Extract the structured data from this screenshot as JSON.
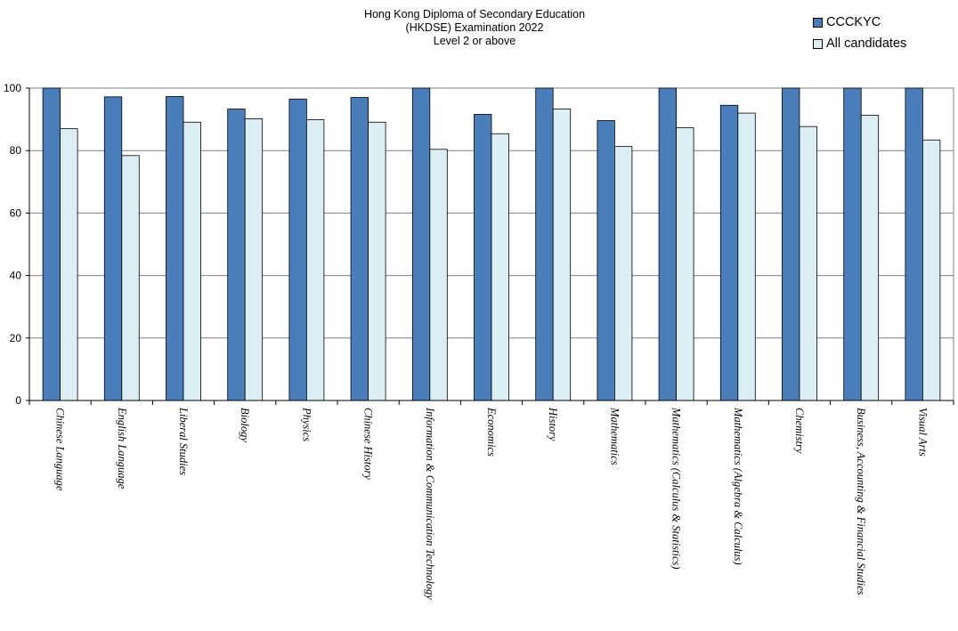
{
  "chart_data": {
    "type": "bar",
    "title_lines": [
      "Hong Kong Diploma of Secondary Education",
      "(HKDSE) Examination 2022",
      "Level 2 or above"
    ],
    "legend_position": "top-right",
    "grid": true,
    "ylim": [
      0,
      100
    ],
    "yticks": [
      0,
      20,
      40,
      60,
      80,
      100
    ],
    "categories": [
      "Chinese Language",
      "English Language",
      "Liberal Studies",
      "Biology",
      "Physics",
      "Chinese History",
      "Information & Communication Technology",
      "Economics",
      "History",
      "Mathematics",
      "Mathematics (Calculus & Statistics)",
      "Mathematics (Algebra & Calculus)",
      "Chemistry",
      "Business, Accounting & Financial Studies",
      "Visual Arts"
    ],
    "series": [
      {
        "name": "CCCKYC",
        "color": "#4a7ebb",
        "values": [
          100,
          97.2,
          97.3,
          93.3,
          96.5,
          97.0,
          100,
          91.6,
          100,
          89.6,
          100,
          94.5,
          100,
          100,
          100
        ]
      },
      {
        "name": "All candidates",
        "color": "#dbeef4",
        "values": [
          87.0,
          78.4,
          89.1,
          90.2,
          89.9,
          89.1,
          80.4,
          85.4,
          93.3,
          81.3,
          87.3,
          92.0,
          87.7,
          91.3,
          83.4
        ]
      }
    ]
  }
}
